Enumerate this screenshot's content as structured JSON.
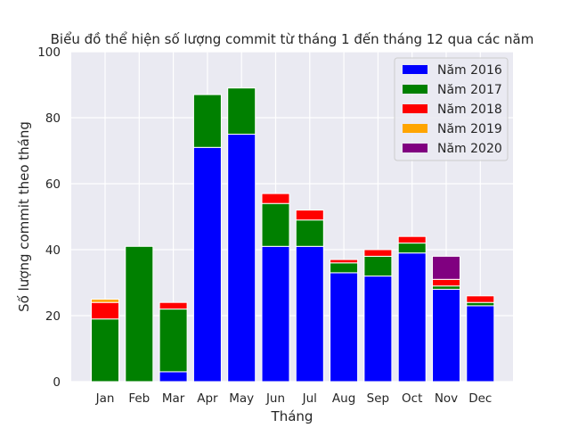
{
  "chart_data": {
    "type": "bar",
    "stacked": true,
    "title": "Biểu đồ thể hiện số lượng commit từ tháng 1 đến tháng 12 qua các năm",
    "xlabel": "Tháng",
    "ylabel": "Số lượng commit theo tháng",
    "categories": [
      "Jan",
      "Feb",
      "Mar",
      "Apr",
      "May",
      "Jun",
      "Jul",
      "Aug",
      "Sep",
      "Oct",
      "Nov",
      "Dec"
    ],
    "ylim": [
      0,
      100
    ],
    "yticks": [
      0,
      20,
      40,
      60,
      80,
      100
    ],
    "grid": true,
    "legend_position": "top-right",
    "series": [
      {
        "name": "Năm 2016",
        "color": "#0000ff",
        "values": [
          0,
          0,
          3,
          71,
          75,
          41,
          41,
          33,
          32,
          39,
          28,
          23
        ]
      },
      {
        "name": "Năm 2017",
        "color": "#008000",
        "values": [
          19,
          41,
          19,
          16,
          14,
          13,
          8,
          3,
          6,
          3,
          1,
          1
        ]
      },
      {
        "name": "Năm 2018",
        "color": "#ff0000",
        "values": [
          5,
          0,
          2,
          0,
          0,
          3,
          3,
          1,
          2,
          2,
          2,
          2
        ]
      },
      {
        "name": "Năm 2019",
        "color": "#ffa500",
        "values": [
          1,
          0,
          0,
          0,
          0,
          0,
          0,
          0,
          0,
          0,
          0,
          0
        ]
      },
      {
        "name": "Năm 2020",
        "color": "#800080",
        "values": [
          0,
          0,
          0,
          0,
          0,
          0,
          0,
          0,
          0,
          0,
          7,
          0
        ]
      }
    ]
  }
}
